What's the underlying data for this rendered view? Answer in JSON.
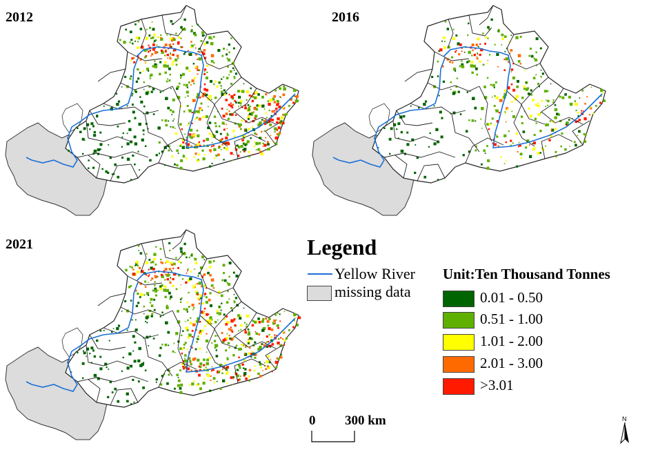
{
  "maps": [
    {
      "year": "2012",
      "density": 1.0
    },
    {
      "year": "2016",
      "density": 0.55
    },
    {
      "year": "2021",
      "density": 0.95
    }
  ],
  "legend": {
    "title": "Legend",
    "river_label": "Yellow River",
    "missing_label": "missing data",
    "unit_title": "Unit:Ten Thousand Tonnes",
    "classes": [
      {
        "label": "0.01 - 0.50",
        "color": "#006400"
      },
      {
        "label": "0.51 - 1.00",
        "color": "#5fb000"
      },
      {
        "label": "1.01 - 2.00",
        "color": "#ffff00"
      },
      {
        "label": "2.01 - 3.00",
        "color": "#ff6a00"
      },
      {
        "label": ">3.01",
        "color": "#ff1a00"
      }
    ],
    "river_color": "#1a6fd6",
    "missing_color": "#dcdcdc"
  },
  "scale_bar": {
    "start": "0",
    "end": "300 km"
  },
  "north_arrow": {
    "label": "N",
    "icon": "north-arrow-icon"
  }
}
